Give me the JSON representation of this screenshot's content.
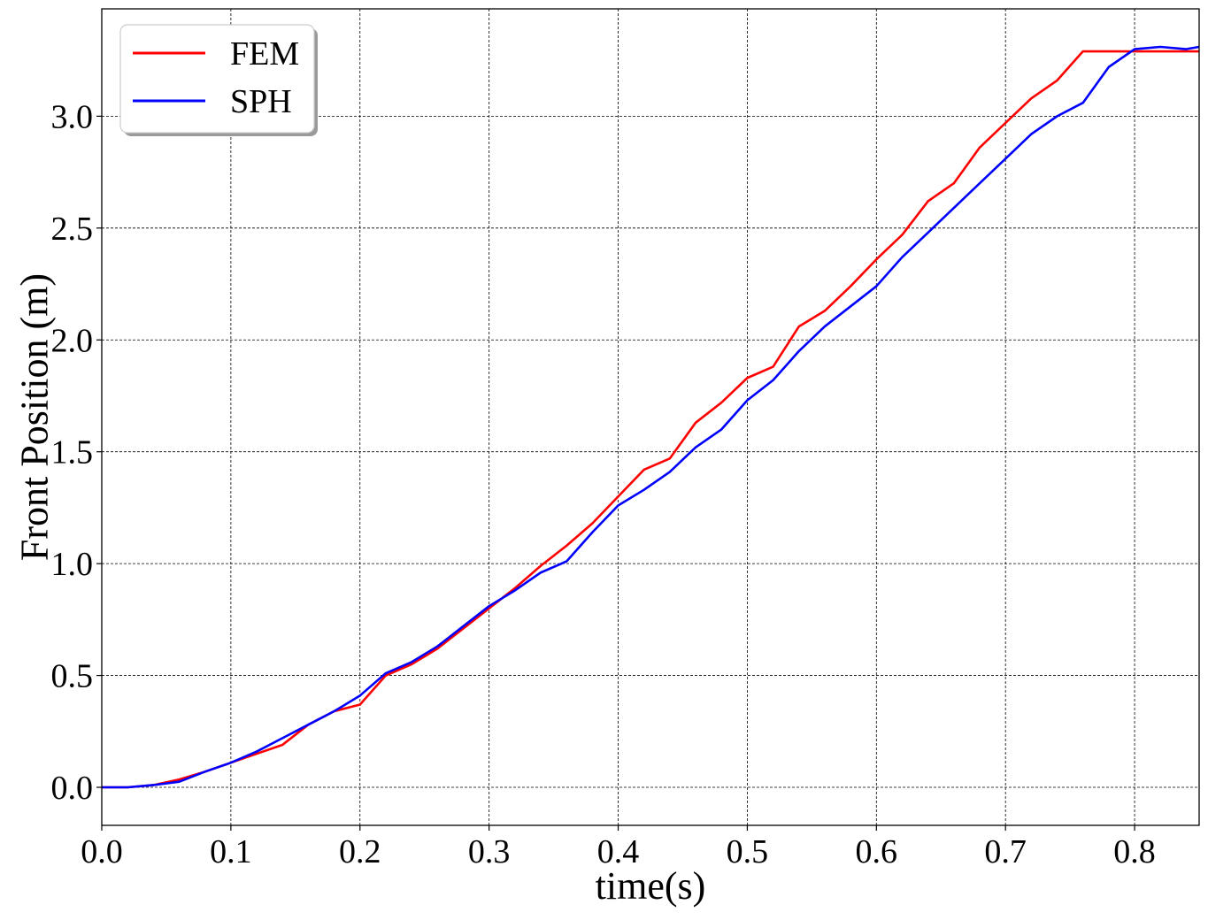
{
  "chart_data": {
    "type": "line",
    "title": "",
    "xlabel": "time(s)",
    "ylabel": "Front Position (m)",
    "xlim": [
      0.0,
      0.85
    ],
    "ylim": [
      -0.17,
      3.48
    ],
    "xticks": [
      "0.0",
      "0.1",
      "0.2",
      "0.3",
      "0.4",
      "0.5",
      "0.6",
      "0.7",
      "0.8"
    ],
    "yticks": [
      "0.0",
      "0.5",
      "1.0",
      "1.5",
      "2.0",
      "2.5",
      "3.0"
    ],
    "grid": true,
    "legend_position": "top-left",
    "series": [
      {
        "name": "FEM",
        "color": "#ff0000",
        "x": [
          0.0,
          0.02,
          0.04,
          0.06,
          0.08,
          0.1,
          0.12,
          0.14,
          0.16,
          0.18,
          0.2,
          0.22,
          0.24,
          0.26,
          0.28,
          0.3,
          0.32,
          0.34,
          0.36,
          0.38,
          0.4,
          0.42,
          0.44,
          0.46,
          0.48,
          0.5,
          0.52,
          0.54,
          0.56,
          0.58,
          0.6,
          0.62,
          0.64,
          0.66,
          0.68,
          0.7,
          0.72,
          0.74,
          0.76,
          0.78,
          0.8,
          0.82,
          0.85
        ],
        "y": [
          0.0,
          0.0,
          0.01,
          0.035,
          0.07,
          0.11,
          0.15,
          0.19,
          0.28,
          0.34,
          0.37,
          0.5,
          0.55,
          0.62,
          0.71,
          0.8,
          0.89,
          0.99,
          1.08,
          1.18,
          1.3,
          1.42,
          1.47,
          1.63,
          1.72,
          1.83,
          1.88,
          2.06,
          2.13,
          2.24,
          2.36,
          2.47,
          2.62,
          2.7,
          2.86,
          2.97,
          3.08,
          3.16,
          3.29,
          3.29,
          3.29,
          3.29,
          3.29
        ]
      },
      {
        "name": "SPH",
        "color": "#0000ff",
        "x": [
          0.0,
          0.02,
          0.04,
          0.06,
          0.08,
          0.1,
          0.12,
          0.14,
          0.16,
          0.18,
          0.2,
          0.22,
          0.24,
          0.26,
          0.28,
          0.3,
          0.32,
          0.34,
          0.36,
          0.38,
          0.4,
          0.42,
          0.44,
          0.46,
          0.48,
          0.5,
          0.52,
          0.54,
          0.56,
          0.58,
          0.6,
          0.62,
          0.64,
          0.66,
          0.68,
          0.7,
          0.72,
          0.74,
          0.76,
          0.78,
          0.8,
          0.82,
          0.84,
          0.85
        ],
        "y": [
          0.0,
          0.0,
          0.01,
          0.025,
          0.07,
          0.11,
          0.16,
          0.22,
          0.28,
          0.34,
          0.41,
          0.51,
          0.56,
          0.63,
          0.72,
          0.81,
          0.88,
          0.96,
          1.01,
          1.14,
          1.26,
          1.33,
          1.41,
          1.52,
          1.6,
          1.73,
          1.82,
          1.95,
          2.06,
          2.15,
          2.24,
          2.37,
          2.48,
          2.59,
          2.7,
          2.81,
          2.92,
          3.0,
          3.06,
          3.22,
          3.3,
          3.31,
          3.3,
          3.31
        ]
      }
    ]
  }
}
